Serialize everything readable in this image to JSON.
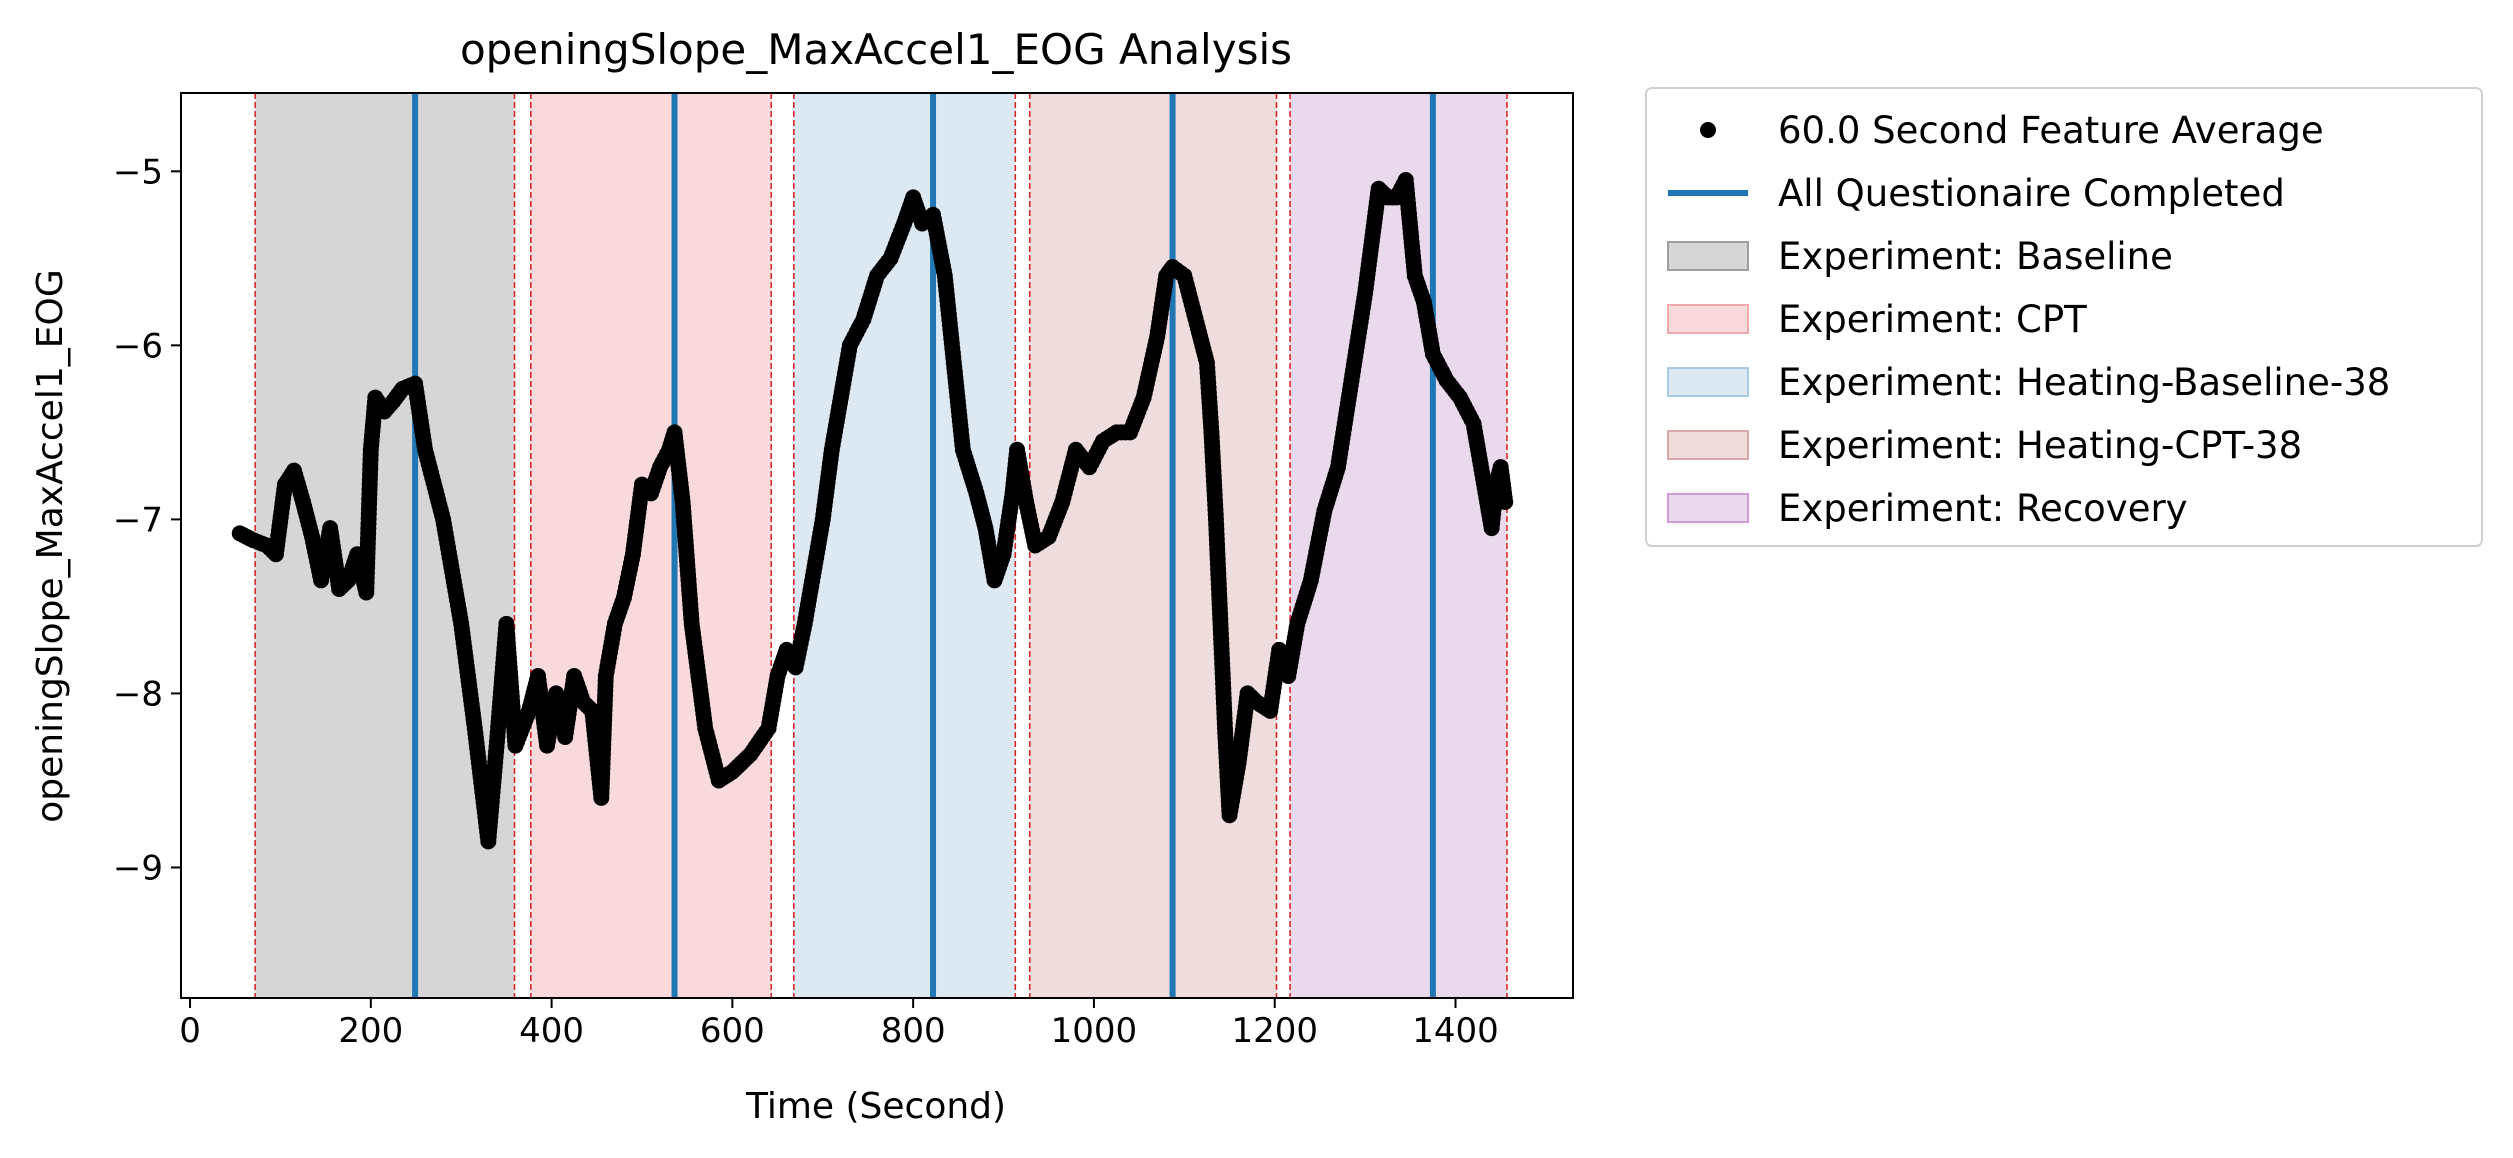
{
  "chart_data": {
    "type": "scatter",
    "title": "openingSlope_MaxAccel1_EOG Analysis",
    "xlabel": "Time (Second)",
    "ylabel": "openingSlope_MaxAccel1_EOG",
    "xlim": [
      -10,
      1530
    ],
    "ylim": [
      -9.75,
      -4.55
    ],
    "x_ticks": [
      0,
      200,
      400,
      600,
      800,
      1000,
      1200,
      1400
    ],
    "y_ticks": [
      -9,
      -8,
      -7,
      -6,
      -5
    ],
    "grid": false,
    "legend_placement": "outside upper right",
    "legend": [
      {
        "label": "60.0 Second Feature Average",
        "kind": "marker",
        "color": "#000000"
      },
      {
        "label": "All Questionaire Completed",
        "kind": "line",
        "color": "#1f77b4"
      },
      {
        "label": "Experiment: Baseline",
        "kind": "patch",
        "color": "#d6d6d6",
        "edge": "#9e9e9e"
      },
      {
        "label": "Experiment: CPT",
        "kind": "patch",
        "color": "#f8dadd",
        "edge": "#f0a8ae"
      },
      {
        "label": "Experiment: Heating-Baseline-38",
        "kind": "patch",
        "color": "#dce8f2",
        "edge": "#a9c8e2"
      },
      {
        "label": "Experiment: Heating-CPT-38",
        "kind": "patch",
        "color": "#efdcdc",
        "edge": "#d9a9a9"
      },
      {
        "label": "Experiment: Recovery",
        "kind": "patch",
        "color": "#ead9ec",
        "edge": "#d09cd6"
      }
    ],
    "regions": [
      {
        "name": "Baseline",
        "start": 72,
        "end": 359,
        "color": "#d6d6d6"
      },
      {
        "name": "CPT",
        "start": 377,
        "end": 643,
        "color": "#f8dadd"
      },
      {
        "name": "Heating-Baseline-38",
        "start": 668,
        "end": 913,
        "color": "#dce8f2"
      },
      {
        "name": "Heating-CPT-38",
        "start": 929,
        "end": 1202,
        "color": "#efdcdc"
      },
      {
        "name": "Recovery",
        "start": 1217,
        "end": 1457,
        "color": "#ead9ec"
      }
    ],
    "boundary_lines": [
      72,
      359,
      377,
      643,
      668,
      913,
      929,
      1202,
      1217,
      1457
    ],
    "boundary_color": "#d62728",
    "questionnaire_lines": [
      249,
      536,
      822,
      1087,
      1375
    ],
    "questionnaire_color": "#1f77b4",
    "series": [
      {
        "name": "60.0 Second Feature Average",
        "color": "#000000",
        "points": [
          [
            55,
            -7.08
          ],
          [
            70,
            -7.12
          ],
          [
            85,
            -7.15
          ],
          [
            95,
            -7.2
          ],
          [
            105,
            -6.8
          ],
          [
            115,
            -6.72
          ],
          [
            125,
            -6.9
          ],
          [
            135,
            -7.1
          ],
          [
            145,
            -7.35
          ],
          [
            155,
            -7.05
          ],
          [
            165,
            -7.4
          ],
          [
            175,
            -7.35
          ],
          [
            185,
            -7.2
          ],
          [
            195,
            -7.42
          ],
          [
            200,
            -6.6
          ],
          [
            205,
            -6.3
          ],
          [
            215,
            -6.38
          ],
          [
            225,
            -6.32
          ],
          [
            235,
            -6.25
          ],
          [
            249,
            -6.22
          ],
          [
            260,
            -6.6
          ],
          [
            280,
            -7.0
          ],
          [
            300,
            -7.6
          ],
          [
            315,
            -8.2
          ],
          [
            330,
            -8.85
          ],
          [
            340,
            -8.25
          ],
          [
            350,
            -7.6
          ],
          [
            360,
            -8.3
          ],
          [
            375,
            -8.1
          ],
          [
            385,
            -7.9
          ],
          [
            395,
            -8.3
          ],
          [
            405,
            -8.0
          ],
          [
            415,
            -8.25
          ],
          [
            425,
            -7.9
          ],
          [
            435,
            -8.05
          ],
          [
            445,
            -8.1
          ],
          [
            455,
            -8.6
          ],
          [
            460,
            -7.9
          ],
          [
            470,
            -7.6
          ],
          [
            480,
            -7.45
          ],
          [
            490,
            -7.2
          ],
          [
            500,
            -6.8
          ],
          [
            510,
            -6.85
          ],
          [
            520,
            -6.7
          ],
          [
            530,
            -6.6
          ],
          [
            536,
            -6.5
          ],
          [
            545,
            -6.9
          ],
          [
            555,
            -7.6
          ],
          [
            570,
            -8.2
          ],
          [
            585,
            -8.5
          ],
          [
            600,
            -8.45
          ],
          [
            620,
            -8.35
          ],
          [
            640,
            -8.2
          ],
          [
            650,
            -7.9
          ],
          [
            660,
            -7.75
          ],
          [
            670,
            -7.85
          ],
          [
            680,
            -7.6
          ],
          [
            690,
            -7.3
          ],
          [
            700,
            -7.0
          ],
          [
            710,
            -6.6
          ],
          [
            720,
            -6.3
          ],
          [
            730,
            -6.0
          ],
          [
            745,
            -5.85
          ],
          [
            760,
            -5.6
          ],
          [
            775,
            -5.5
          ],
          [
            790,
            -5.3
          ],
          [
            800,
            -5.15
          ],
          [
            810,
            -5.3
          ],
          [
            822,
            -5.25
          ],
          [
            835,
            -5.6
          ],
          [
            845,
            -6.1
          ],
          [
            855,
            -6.6
          ],
          [
            870,
            -6.85
          ],
          [
            880,
            -7.05
          ],
          [
            890,
            -7.35
          ],
          [
            900,
            -7.2
          ],
          [
            910,
            -6.85
          ],
          [
            915,
            -6.6
          ],
          [
            925,
            -6.9
          ],
          [
            935,
            -7.15
          ],
          [
            950,
            -7.1
          ],
          [
            965,
            -6.9
          ],
          [
            980,
            -6.6
          ],
          [
            995,
            -6.7
          ],
          [
            1010,
            -6.55
          ],
          [
            1025,
            -6.5
          ],
          [
            1040,
            -6.5
          ],
          [
            1055,
            -6.3
          ],
          [
            1070,
            -5.95
          ],
          [
            1080,
            -5.6
          ],
          [
            1087,
            -5.55
          ],
          [
            1100,
            -5.6
          ],
          [
            1115,
            -5.9
          ],
          [
            1125,
            -6.1
          ],
          [
            1130,
            -6.5
          ],
          [
            1135,
            -7.0
          ],
          [
            1140,
            -7.6
          ],
          [
            1145,
            -8.2
          ],
          [
            1150,
            -8.7
          ],
          [
            1160,
            -8.4
          ],
          [
            1170,
            -8.0
          ],
          [
            1180,
            -8.05
          ],
          [
            1195,
            -8.1
          ],
          [
            1205,
            -7.75
          ],
          [
            1215,
            -7.9
          ],
          [
            1225,
            -7.6
          ],
          [
            1240,
            -7.35
          ],
          [
            1255,
            -6.95
          ],
          [
            1270,
            -6.7
          ],
          [
            1285,
            -6.2
          ],
          [
            1300,
            -5.7
          ],
          [
            1315,
            -5.1
          ],
          [
            1325,
            -5.15
          ],
          [
            1335,
            -5.15
          ],
          [
            1345,
            -5.05
          ],
          [
            1355,
            -5.6
          ],
          [
            1365,
            -5.75
          ],
          [
            1375,
            -6.05
          ],
          [
            1390,
            -6.2
          ],
          [
            1405,
            -6.3
          ],
          [
            1420,
            -6.45
          ],
          [
            1425,
            -6.6
          ],
          [
            1435,
            -6.9
          ],
          [
            1440,
            -7.05
          ],
          [
            1445,
            -6.8
          ],
          [
            1450,
            -6.7
          ],
          [
            1455,
            -6.9
          ]
        ]
      }
    ]
  }
}
